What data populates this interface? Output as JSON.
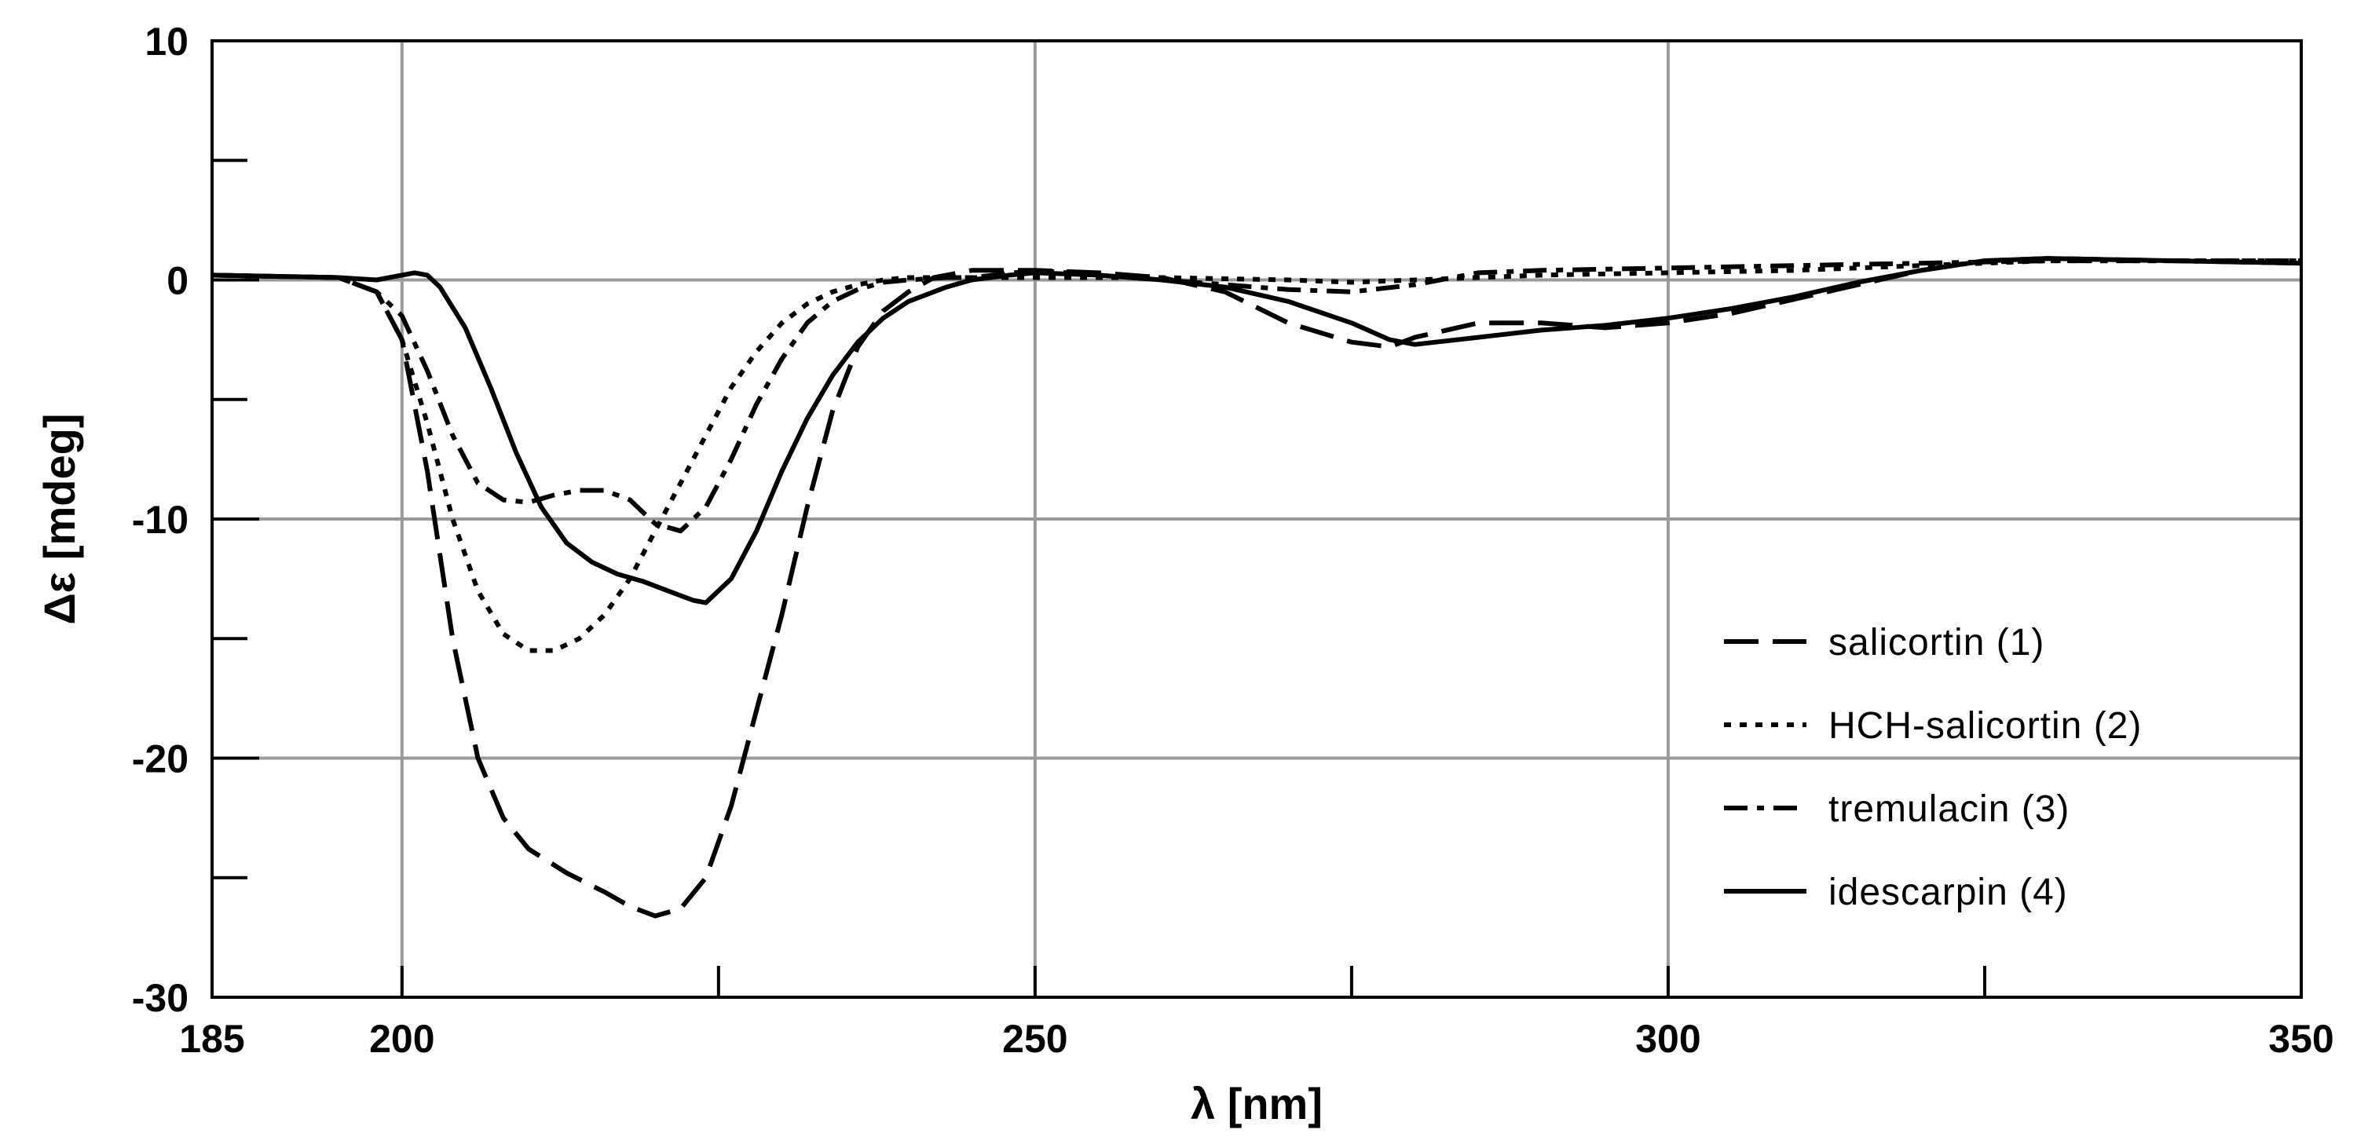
{
  "chart_data": {
    "type": "line",
    "title": "",
    "xlabel": "λ [nm]",
    "ylabel": "Δε [mdeg]",
    "xlim": [
      185,
      350
    ],
    "ylim": [
      -30,
      10
    ],
    "x_ticks": [
      {
        "value": 185,
        "label": "185"
      },
      {
        "value": 200,
        "label": "200"
      },
      {
        "value": 250,
        "label": "250"
      },
      {
        "value": 300,
        "label": "300"
      },
      {
        "value": 350,
        "label": "350"
      }
    ],
    "x_minor_ticks": [
      225,
      275,
      325
    ],
    "x_grid": [
      200,
      250,
      300
    ],
    "y_ticks": [
      {
        "value": 10,
        "label": "10"
      },
      {
        "value": 0,
        "label": "0"
      },
      {
        "value": -10,
        "label": "-10"
      },
      {
        "value": -20,
        "label": "-20"
      },
      {
        "value": -30,
        "label": "-30"
      }
    ],
    "y_minor_ticks": [
      5,
      -5,
      -15,
      -25
    ],
    "y_grid": [
      0,
      -10,
      -20
    ],
    "grid": true,
    "legend_position": "right",
    "series": [
      {
        "name": "salicortin (1)",
        "style": "dashed",
        "x": [
          185,
          195,
          198,
          200,
          202,
          204,
          206,
          208,
          210,
          213,
          216,
          218,
          220,
          222,
          224,
          226,
          228,
          230,
          232,
          234,
          236,
          238,
          240,
          242,
          245,
          250,
          255,
          260,
          265,
          270,
          275,
          278,
          280,
          285,
          290,
          295,
          300,
          305,
          310,
          315,
          320,
          325,
          330,
          340,
          350
        ],
        "y": [
          0.2,
          0.1,
          -0.5,
          -2.5,
          -8,
          -15,
          -20,
          -22.5,
          -23.8,
          -24.8,
          -25.6,
          -26.2,
          -26.6,
          -26.3,
          -25,
          -22,
          -18,
          -14,
          -9.5,
          -5.5,
          -2.8,
          -1.3,
          -0.5,
          0.1,
          0.4,
          0.4,
          0.3,
          0.1,
          -0.5,
          -1.8,
          -2.6,
          -2.8,
          -2.4,
          -1.8,
          -1.8,
          -2,
          -1.8,
          -1.4,
          -0.8,
          -0.2,
          0.4,
          0.8,
          0.9,
          0.8,
          0.7
        ]
      },
      {
        "name": "HCH-salicortin (2)",
        "style": "dotted",
        "x": [
          185,
          195,
          198,
          200,
          202,
          204,
          206,
          208,
          210,
          212,
          214,
          216,
          218,
          220,
          222,
          224,
          226,
          228,
          230,
          232,
          234,
          236,
          238,
          240,
          243,
          245,
          250,
          260,
          270,
          275,
          280,
          290,
          300,
          310,
          320,
          330,
          340,
          350
        ],
        "y": [
          0.2,
          0.1,
          -0.5,
          -2.5,
          -6,
          -10,
          -13,
          -14.8,
          -15.5,
          -15.5,
          -15,
          -14,
          -12.5,
          -10.5,
          -8.5,
          -6.5,
          -4.5,
          -3,
          -1.8,
          -1,
          -0.5,
          -0.2,
          0,
          0.1,
          0.1,
          0.1,
          0.1,
          0.1,
          0,
          -0.1,
          0,
          0.2,
          0.3,
          0.4,
          0.6,
          0.8,
          0.8,
          0.8
        ]
      },
      {
        "name": "tremulacin (3)",
        "style": "dash-dot",
        "x": [
          185,
          195,
          198,
          200,
          202,
          204,
          206,
          208,
          210,
          212,
          214,
          216,
          218,
          220,
          222,
          224,
          226,
          228,
          230,
          232,
          234,
          236,
          238,
          240,
          243,
          245,
          250,
          255,
          260,
          265,
          270,
          275,
          280,
          285,
          290,
          300,
          310,
          320,
          330,
          340,
          350
        ],
        "y": [
          0.2,
          0.1,
          -0.5,
          -1.5,
          -3.8,
          -6.5,
          -8.5,
          -9.2,
          -9.3,
          -9,
          -8.8,
          -8.8,
          -9.2,
          -10.2,
          -10.5,
          -9.5,
          -7.5,
          -5.2,
          -3.3,
          -1.8,
          -0.9,
          -0.4,
          -0.1,
          0,
          0.1,
          0.1,
          0.4,
          0.2,
          0,
          -0.2,
          -0.4,
          -0.5,
          -0.2,
          0.3,
          0.4,
          0.5,
          0.6,
          0.7,
          0.8,
          0.8,
          0.8
        ]
      },
      {
        "name": "idescarpin (4)",
        "style": "solid",
        "x": [
          185,
          195,
          198,
          200,
          201,
          202,
          203,
          205,
          207,
          209,
          211,
          213,
          215,
          217,
          219,
          221,
          223,
          224,
          226,
          228,
          230,
          232,
          234,
          236,
          238,
          240,
          243,
          245,
          248,
          250,
          255,
          260,
          265,
          270,
          275,
          278,
          280,
          285,
          290,
          295,
          300,
          305,
          310,
          315,
          320,
          325,
          330,
          340,
          350
        ],
        "y": [
          0.2,
          0.1,
          0,
          0.2,
          0.3,
          0.2,
          -0.3,
          -2,
          -4.5,
          -7.2,
          -9.5,
          -11,
          -11.8,
          -12.3,
          -12.6,
          -13,
          -13.4,
          -13.5,
          -12.5,
          -10.5,
          -8,
          -5.8,
          -4,
          -2.6,
          -1.6,
          -0.9,
          -0.3,
          0,
          0.2,
          0.3,
          0.2,
          0,
          -0.3,
          -0.9,
          -1.8,
          -2.5,
          -2.7,
          -2.4,
          -2.1,
          -1.9,
          -1.6,
          -1.2,
          -0.7,
          -0.1,
          0.4,
          0.8,
          0.9,
          0.8,
          0.7
        ]
      }
    ]
  }
}
